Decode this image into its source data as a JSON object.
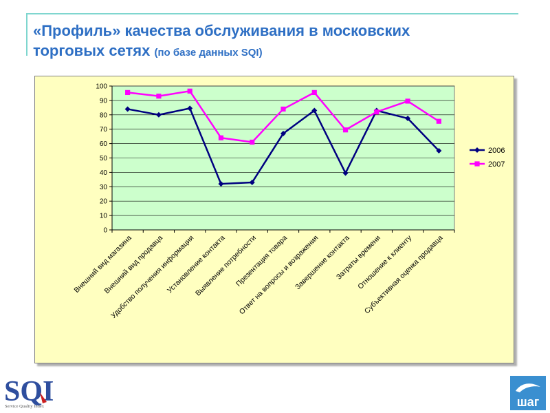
{
  "slide": {
    "title_line1": "«Профиль» качества обслуживания в московских",
    "title_line2": "торговых сетях",
    "title_suffix": "(по базе данных SQI)"
  },
  "logos": {
    "left": {
      "text": "SQI",
      "sub": "Service Quality Index",
      "icon": "sqi-logo"
    },
    "right": {
      "text": "шаг",
      "icon": "shag-logo"
    }
  },
  "colors": {
    "accent": "#2e6fc4",
    "series_2006": "#000080",
    "series_2007": "#ff00ff",
    "plot_bg": "#ccffcc",
    "frame_bg": "#ffffc0"
  },
  "chart_data": {
    "type": "line",
    "title": "",
    "xlabel": "",
    "ylabel": "",
    "ylim": [
      0,
      100
    ],
    "yticks": [
      0,
      10,
      20,
      30,
      40,
      50,
      60,
      70,
      80,
      90,
      100
    ],
    "grid": true,
    "legend": "right",
    "categories": [
      "Внешний вид магазина",
      "Внешний вид продавца",
      "Удобство получения информации",
      "Установление контакта",
      "Выявление потребности",
      "Презентация товара",
      "Ответ на вопросы и возражения",
      "Завершение контакта",
      "Затраты времени",
      "Отношение к клиенту",
      "Субъективная оценка продавца"
    ],
    "series": [
      {
        "name": "2006",
        "color": "#000080",
        "marker": "diamond",
        "values": [
          84,
          80,
          84.5,
          32,
          33,
          67,
          83,
          39.5,
          83,
          77.5,
          55
        ]
      },
      {
        "name": "2007",
        "color": "#ff00ff",
        "marker": "square",
        "values": [
          95.5,
          93,
          96.5,
          64,
          61,
          84,
          95.5,
          69.5,
          82,
          89.5,
          75.5
        ]
      }
    ]
  }
}
